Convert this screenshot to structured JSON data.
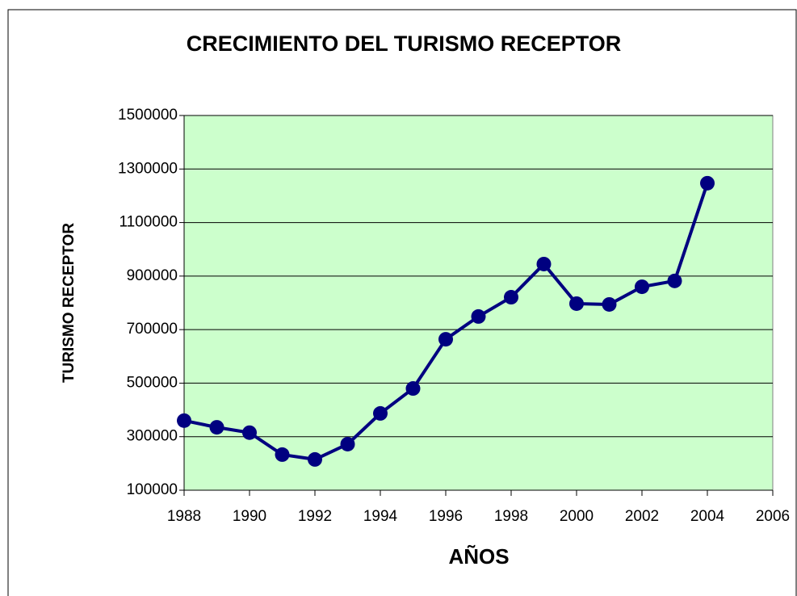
{
  "chart_data": {
    "type": "line",
    "title": "CRECIMIENTO DEL TURISMO RECEPTOR",
    "x_label": "AÑOS",
    "y_label": "TURISMO RECEPTOR",
    "x": [
      1988,
      1989,
      1990,
      1991,
      1992,
      1993,
      1994,
      1995,
      1996,
      1997,
      1998,
      1999,
      2000,
      2001,
      2002,
      2003,
      2004
    ],
    "series": [
      {
        "name": "TURISMO RECEPTOR",
        "color": "#000080",
        "values": [
          360000,
          335000,
          315000,
          233000,
          215000,
          272000,
          387000,
          480000,
          664000,
          749000,
          821000,
          945000,
          797000,
          794000,
          860000,
          882000,
          1247000
        ]
      }
    ],
    "xlim": [
      1988,
      2006
    ],
    "xticks": [
      1988,
      1990,
      1992,
      1994,
      1996,
      1998,
      2000,
      2002,
      2004,
      2006
    ],
    "ylim": [
      100000,
      1500000
    ],
    "yticks": [
      100000,
      300000,
      500000,
      700000,
      900000,
      1100000,
      1300000,
      1500000
    ],
    "grid": true,
    "plot_background": "#ccffcc"
  }
}
